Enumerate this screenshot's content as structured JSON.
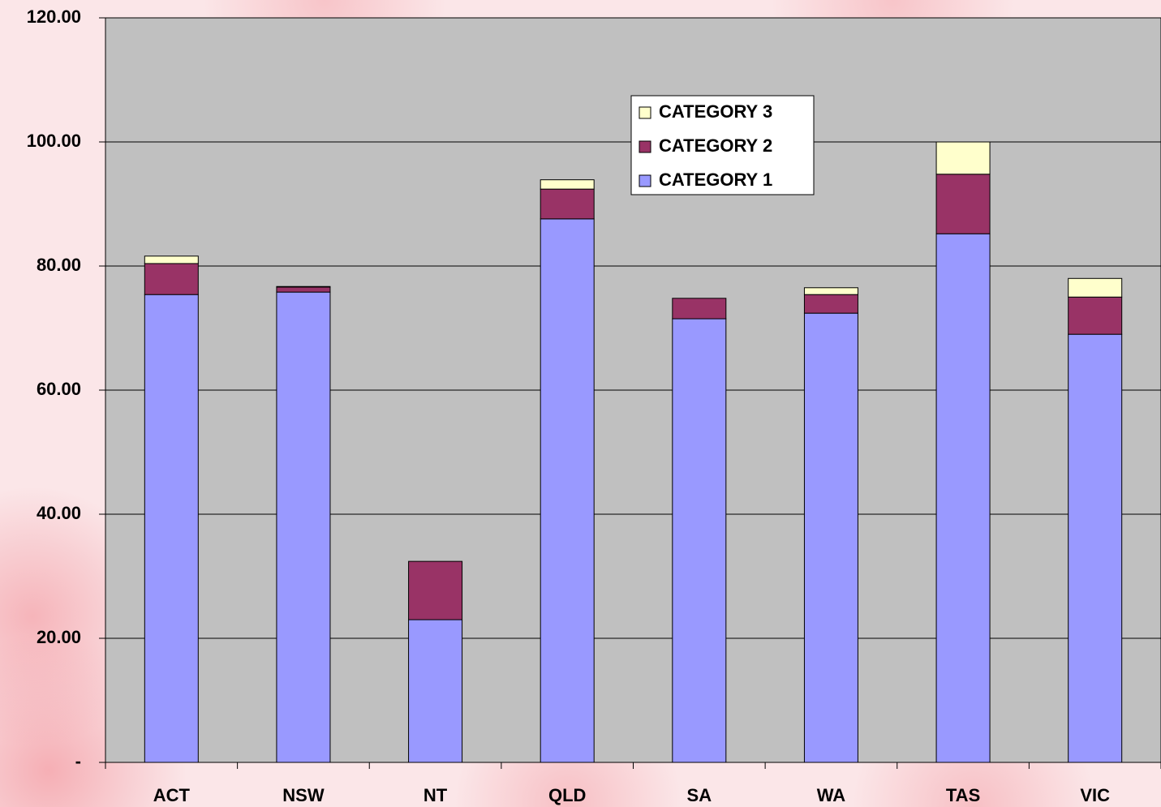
{
  "chart_data": {
    "type": "bar",
    "stacked": true,
    "categories": [
      "ACT",
      "NSW",
      "NT",
      "QLD",
      "SA",
      "WA",
      "TAS",
      "VIC"
    ],
    "series": [
      {
        "name": "CATEGORY 1",
        "color": "#9999ff",
        "values": [
          75.4,
          75.8,
          23.0,
          87.6,
          71.5,
          72.4,
          85.2,
          69.0
        ]
      },
      {
        "name": "CATEGORY 2",
        "color": "#993366",
        "values": [
          5.0,
          0.8,
          9.4,
          4.8,
          3.3,
          3.0,
          9.6,
          6.0
        ]
      },
      {
        "name": "CATEGORY 3",
        "color": "#ffffcc",
        "values": [
          1.2,
          0.1,
          0,
          1.5,
          0,
          1.1,
          5.2,
          3.0
        ]
      }
    ],
    "ylim": [
      0,
      120
    ],
    "yticks": [
      {
        "value": 0,
        "label": "-"
      },
      {
        "value": 20,
        "label": "20.00"
      },
      {
        "value": 40,
        "label": "40.00"
      },
      {
        "value": 60,
        "label": "60.00"
      },
      {
        "value": 80,
        "label": "80.00"
      },
      {
        "value": 100,
        "label": "100.00"
      },
      {
        "value": 120,
        "label": "120.00"
      }
    ],
    "grid": true,
    "plot_background": "#c0c0c0",
    "legend": "upper center",
    "legend_reversed": true
  }
}
